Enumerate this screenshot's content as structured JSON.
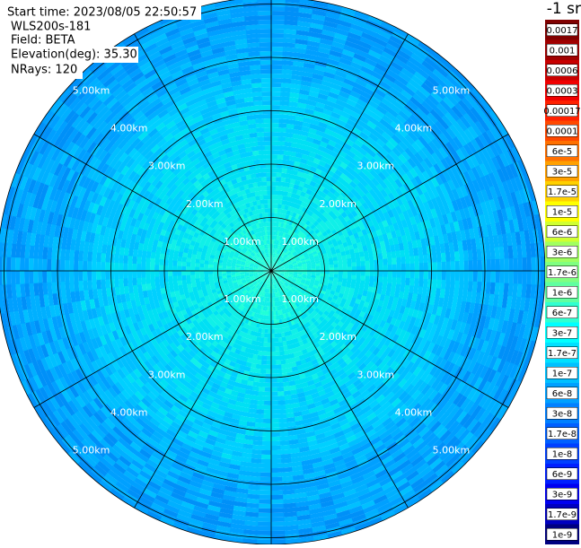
{
  "header": {
    "start_time": "Start time: 2023/08/05 22:50:57",
    "instrument": "WLS200s-181",
    "field": "Field: BETA",
    "elevation": "Elevation(deg): 35.30",
    "nrays": "NRays: 120"
  },
  "range_labels": [
    "1.00km",
    "2.00km",
    "3.00km",
    "4.00km",
    "5.00km"
  ],
  "colorbar": {
    "unit": "-1 sr",
    "labels": [
      "0.0017",
      "0.001",
      "0.0006",
      "0.0003",
      "0.00017",
      "0.0001",
      "6e-5",
      "3e-5",
      "1.7e-5",
      "1e-5",
      "6e-6",
      "3e-6",
      "1.7e-6",
      "1e-6",
      "6e-7",
      "3e-7",
      "1.7e-7",
      "1e-7",
      "6e-8",
      "3e-8",
      "1.7e-8",
      "1e-8",
      "6e-9",
      "3e-9",
      "1.7e-9",
      "1e-9"
    ],
    "colors": [
      "#800000",
      "#a00000",
      "#c80000",
      "#f00000",
      "#ff2000",
      "#ff4800",
      "#ff7000",
      "#ffa000",
      "#ffd000",
      "#ffff00",
      "#d0ff30",
      "#a0ff60",
      "#80ff80",
      "#60ffa0",
      "#30ffd0",
      "#00ffff",
      "#00e0ff",
      "#00c0ff",
      "#00a0ff",
      "#0080ff",
      "#0060ff",
      "#0040ff",
      "#0020ff",
      "#0000f0",
      "#0000c0",
      "#000080"
    ]
  }
}
